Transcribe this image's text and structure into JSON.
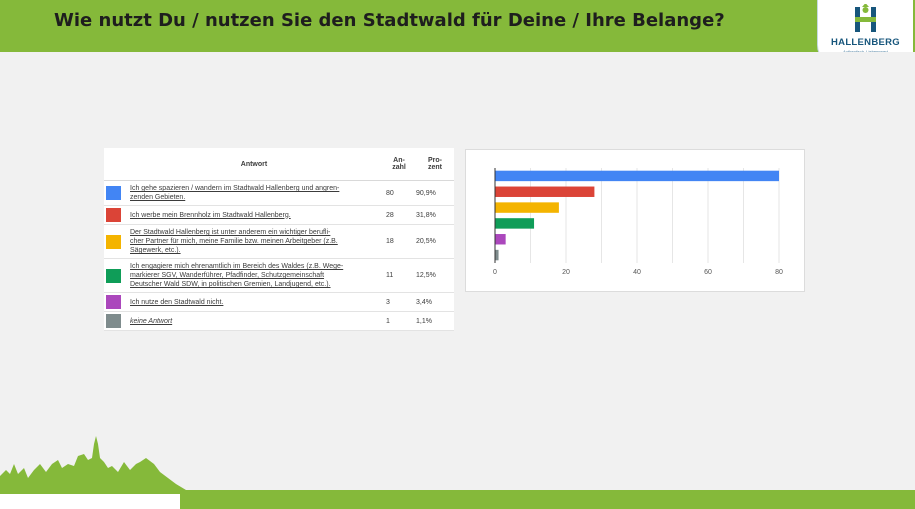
{
  "header": {
    "title": "Wie nutzt Du / nutzen Sie den Stadtwald für Deine / Ihre Belange?",
    "logo_name": "HALLENBERG",
    "logo_tagline": "Authentisch. Liebenswert",
    "colors": {
      "band": "#85b93a",
      "logo_blue": "#17567c",
      "logo_green": "#85b93a"
    }
  },
  "table": {
    "headers": {
      "answer": "Antwort",
      "count": "An-\nzahl",
      "percent": "Pro-\nzent"
    },
    "rows": [
      {
        "color": "#4285f4",
        "answer": "Ich gehe spazieren / wandern im Stadtwald Hallenberg und angren-\nzenden Gebieten.",
        "count": "80",
        "percent": "90,9%",
        "italic": false
      },
      {
        "color": "#db4437",
        "answer": "Ich werbe mein Brennholz im Stadtwald Hallenberg.",
        "count": "28",
        "percent": "31,8%",
        "italic": false
      },
      {
        "color": "#f4b400",
        "answer": "Der Stadtwald Hallenberg ist unter anderem ein wichtiger berufli-\ncher Partner für mich, meine Familie bzw. meinen Arbeitgeber (z.B.\nSägewerk, etc.).",
        "count": "18",
        "percent": "20,5%",
        "italic": false
      },
      {
        "color": "#0f9d58",
        "answer": "Ich engagiere mich ehrenamtlich im Bereich des Waldes (z.B. Wege-\nmarkierer SGV, Wanderführer, Pfadfinder, Schutzgemeinschaft\nDeutscher Wald SDW, in politischen Gremien, Landjugend, etc.).",
        "count": "11",
        "percent": "12,5%",
        "italic": false
      },
      {
        "color": "#ab47bc",
        "answer": "Ich nutze den Stadtwald nicht.",
        "count": "3",
        "percent": "3,4%",
        "italic": false
      },
      {
        "color": "#7f8c8d",
        "answer": "keine Antwort",
        "count": "1",
        "percent": "1,1%",
        "italic": true
      }
    ]
  },
  "chart_data": {
    "type": "bar",
    "orientation": "horizontal",
    "categories": [
      "Ich gehe spazieren / wandern im Stadtwald Hallenberg und angrenzenden Gebieten.",
      "Ich werbe mein Brennholz im Stadtwald Hallenberg.",
      "Der Stadtwald Hallenberg ist unter anderem ein wichtiger beruflicher Partner für mich, meine Familie bzw. meinen Arbeitgeber (z.B. Sägewerk, etc.).",
      "Ich engagiere mich ehrenamtlich im Bereich des Waldes (z.B. Wegemarkierer SGV, Wanderführer, Pfadfinder, Schutzgemeinschaft Deutscher Wald SDW, in politischen Gremien, Landjugend, etc.).",
      "Ich nutze den Stadtwald nicht.",
      "keine Antwort"
    ],
    "values": [
      80,
      28,
      18,
      11,
      3,
      1
    ],
    "colors": [
      "#4285f4",
      "#db4437",
      "#f4b400",
      "#0f9d58",
      "#ab47bc",
      "#7f8c8d"
    ],
    "xlim": [
      0,
      80
    ],
    "xticks": [
      "0",
      "20",
      "40",
      "60",
      "80"
    ],
    "grid": true
  }
}
